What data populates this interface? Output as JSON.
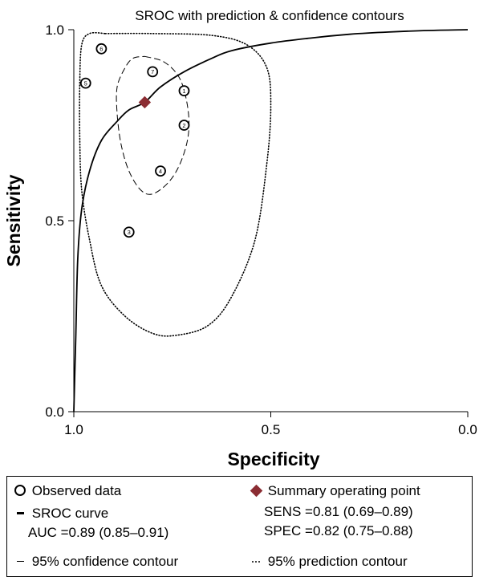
{
  "chart_data": {
    "type": "scatter",
    "title": "SROC with prediction & confidence contours",
    "xlabel": "Specificity",
    "ylabel": "Sensitivity",
    "x_reversed": true,
    "xlim": [
      1.0,
      0.0
    ],
    "ylim": [
      0.0,
      1.0
    ],
    "x_ticks": [
      "1.0",
      "0.5",
      "0.0"
    ],
    "x_tick_values": [
      1.0,
      0.5,
      0.0
    ],
    "y_ticks": [
      "0.0",
      "0.5",
      "1.0"
    ],
    "y_tick_values": [
      0.0,
      0.5,
      1.0
    ],
    "observed": [
      {
        "label": "1",
        "specificity": 0.72,
        "sensitivity": 0.84
      },
      {
        "label": "2",
        "specificity": 0.72,
        "sensitivity": 0.75
      },
      {
        "label": "3",
        "specificity": 0.86,
        "sensitivity": 0.47
      },
      {
        "label": "4",
        "specificity": 0.78,
        "sensitivity": 0.63
      },
      {
        "label": "5",
        "specificity": 0.97,
        "sensitivity": 0.86
      },
      {
        "label": "6",
        "specificity": 0.93,
        "sensitivity": 0.95
      },
      {
        "label": "7",
        "specificity": 0.8,
        "sensitivity": 0.89
      }
    ],
    "summary_point": {
      "specificity": 0.82,
      "sensitivity": 0.81
    },
    "sroc_curve": [
      [
        1.0,
        0.0
      ],
      [
        0.995,
        0.2
      ],
      [
        0.99,
        0.4
      ],
      [
        0.98,
        0.53
      ],
      [
        0.96,
        0.63
      ],
      [
        0.93,
        0.71
      ],
      [
        0.89,
        0.76
      ],
      [
        0.86,
        0.79
      ],
      [
        0.82,
        0.81
      ],
      [
        0.78,
        0.85
      ],
      [
        0.72,
        0.89
      ],
      [
        0.65,
        0.925
      ],
      [
        0.6,
        0.945
      ],
      [
        0.5,
        0.965
      ],
      [
        0.4,
        0.978
      ],
      [
        0.3,
        0.988
      ],
      [
        0.2,
        0.994
      ],
      [
        0.1,
        0.998
      ],
      [
        0.0,
        1.0
      ]
    ],
    "confidence_contour": [
      [
        0.82,
        0.93
      ],
      [
        0.77,
        0.915
      ],
      [
        0.73,
        0.87
      ],
      [
        0.71,
        0.79
      ],
      [
        0.71,
        0.72
      ],
      [
        0.73,
        0.65
      ],
      [
        0.76,
        0.6
      ],
      [
        0.8,
        0.57
      ],
      [
        0.83,
        0.58
      ],
      [
        0.86,
        0.63
      ],
      [
        0.88,
        0.7
      ],
      [
        0.89,
        0.78
      ],
      [
        0.89,
        0.85
      ],
      [
        0.87,
        0.9
      ],
      [
        0.85,
        0.925
      ],
      [
        0.82,
        0.93
      ]
    ],
    "prediction_contour": [
      [
        0.92,
        0.99
      ],
      [
        0.8,
        0.99
      ],
      [
        0.65,
        0.985
      ],
      [
        0.56,
        0.96
      ],
      [
        0.51,
        0.9
      ],
      [
        0.5,
        0.8
      ],
      [
        0.51,
        0.65
      ],
      [
        0.54,
        0.45
      ],
      [
        0.6,
        0.3
      ],
      [
        0.66,
        0.225
      ],
      [
        0.74,
        0.2
      ],
      [
        0.8,
        0.205
      ],
      [
        0.87,
        0.25
      ],
      [
        0.93,
        0.33
      ],
      [
        0.96,
        0.45
      ],
      [
        0.98,
        0.58
      ],
      [
        0.985,
        0.72
      ],
      [
        0.985,
        0.86
      ],
      [
        0.98,
        0.96
      ],
      [
        0.96,
        0.99
      ],
      [
        0.92,
        0.99
      ]
    ],
    "colors": {
      "summary_point": "#8b2d33",
      "line": "#000000"
    }
  },
  "legend": {
    "observed": "Observed data",
    "sroc_curve": "SROC curve",
    "auc": "AUC =0.89 (0.85–0.91)",
    "summary": "Summary operating point",
    "sens": "SENS =0.81 (0.69–0.89)",
    "spec": "SPEC =0.82 (0.75–0.88)",
    "confidence": "95% confidence contour",
    "prediction": "95% prediction contour"
  }
}
